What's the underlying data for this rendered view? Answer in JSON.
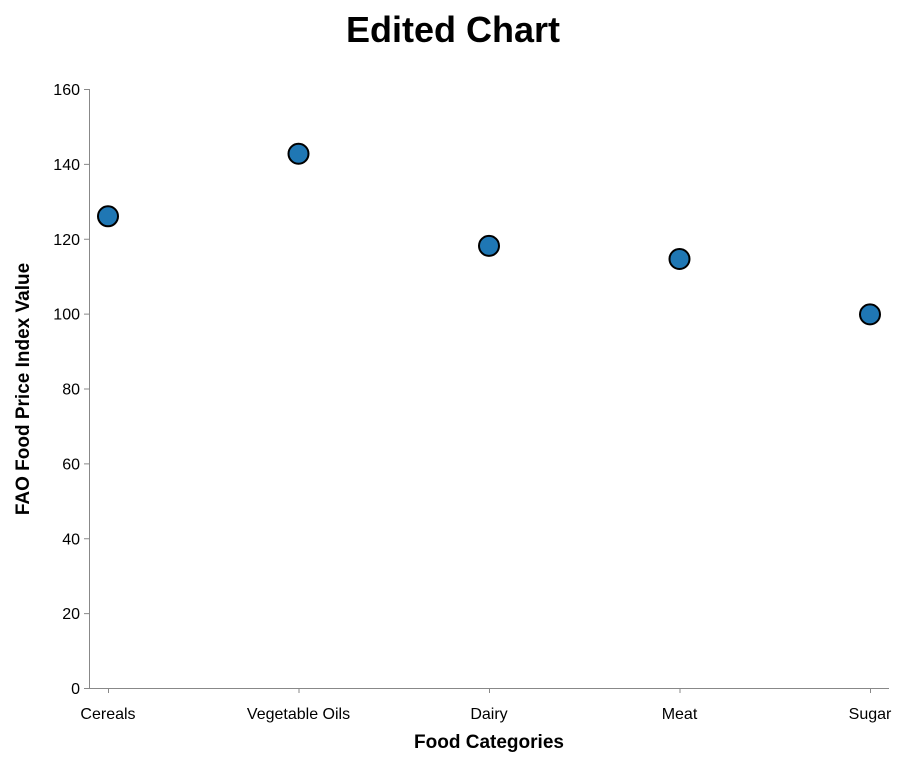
{
  "chart_data": {
    "type": "scatter",
    "title": "Edited Chart",
    "xlabel": "Food Categories",
    "ylabel": "FAO Food Price Index Value",
    "categories": [
      "Cereals",
      "Vegetable Oils",
      "Dairy",
      "Meat",
      "Sugar"
    ],
    "values": [
      126,
      142.7,
      118.1,
      114.6,
      99.8
    ],
    "ylim": [
      0,
      160
    ],
    "yticks": [
      "0",
      "20",
      "40",
      "60",
      "80",
      "100",
      "120",
      "140",
      "160"
    ],
    "grid": false,
    "legend": "none",
    "point_color": "#1f77b4",
    "point_stroke": "#000000"
  }
}
